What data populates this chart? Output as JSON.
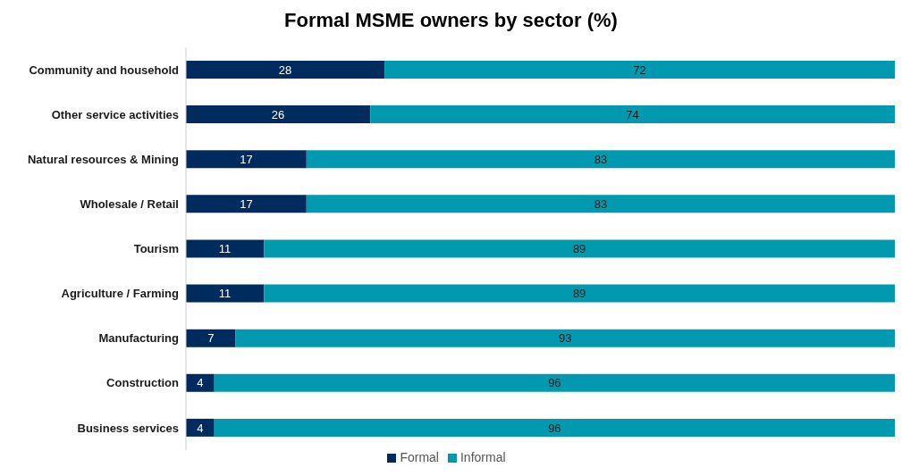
{
  "chart_data": {
    "type": "bar",
    "orientation": "horizontal",
    "stacked": true,
    "title": "Formal MSME owners by sector (%)",
    "categories": [
      "Community and household",
      "Other service activities",
      "Natural resources & Mining",
      "Wholesale / Retail",
      "Tourism",
      "Agriculture / Farming",
      "Manufacturing",
      "Construction",
      "Business services"
    ],
    "series": [
      {
        "name": "Formal",
        "color": "#002b5f",
        "values": [
          28,
          26,
          17,
          17,
          11,
          11,
          7,
          4,
          4
        ]
      },
      {
        "name": "Informal",
        "color": "#0099b0",
        "values": [
          72,
          74,
          83,
          83,
          89,
          89,
          93,
          96,
          96
        ]
      }
    ],
    "xlim": [
      0,
      100
    ],
    "tick_labels": "y",
    "data_labels": true,
    "legend": "bottom"
  }
}
